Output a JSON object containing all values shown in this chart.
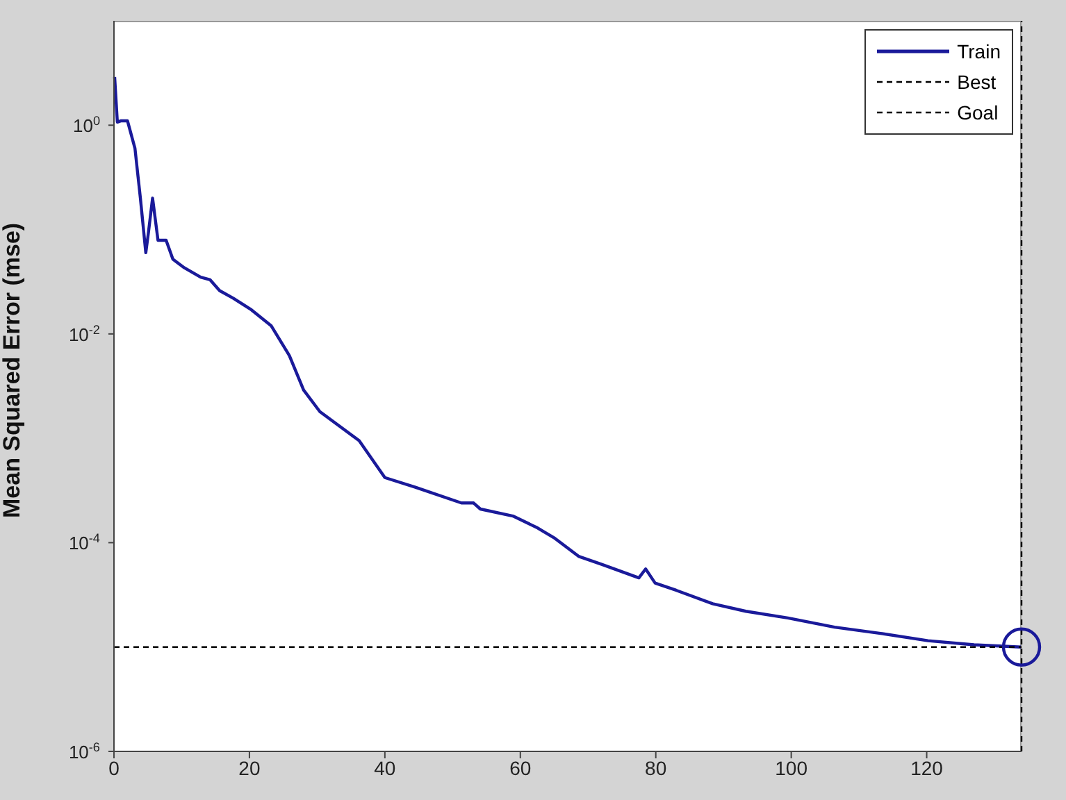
{
  "chart_data": {
    "type": "line",
    "ylabel": "Mean Squared Error  (mse)",
    "log": "y",
    "grid": false,
    "legend": "top right",
    "xlim": [
      0,
      134
    ],
    "xticks": [
      0,
      20,
      40,
      60,
      80,
      100,
      120
    ],
    "ylim": [
      1e-06,
      10
    ],
    "yticks": [
      {
        "value": 1,
        "label": "10$^{0}$"
      },
      {
        "value": 0.01,
        "label": "10$^{-2}$"
      },
      {
        "value": 0.0001,
        "label": "10$^{-4}$"
      },
      {
        "value": 1e-06,
        "label": "10$^{-6}$"
      }
    ],
    "series": [
      {
        "name": "Train",
        "color": "#1a1a9a",
        "line_style": "solid",
        "x": [
          0.1,
          0.5,
          1,
          2,
          3.1,
          3.9,
          4.7,
          5.1,
          5.7,
          6.5,
          7.7,
          8.7,
          10.4,
          12.8,
          14.2,
          15.6,
          17.6,
          20.3,
          23.2,
          25.9,
          28,
          30.4,
          36.2,
          40,
          44.5,
          51.3,
          53.1,
          54.1,
          58.9,
          62.4,
          65.1,
          68.6,
          72,
          77.5,
          78.5,
          79.9,
          83,
          88.4,
          93.3,
          99.5,
          106.4,
          113.2,
          120.2,
          127,
          133.9
        ],
        "values": [
          2.9,
          1.07,
          1.1,
          1.1,
          0.6,
          0.2,
          0.06,
          0.095,
          0.2,
          0.079,
          0.079,
          0.052,
          0.043,
          0.035,
          0.033,
          0.026,
          0.022,
          0.017,
          0.012,
          0.0062,
          0.0029,
          0.0018,
          0.00095,
          0.00042,
          0.00034,
          0.00024,
          0.00024,
          0.00021,
          0.00018,
          0.00014,
          0.00011,
          7.4e-05,
          6.2e-05,
          4.6e-05,
          5.6e-05,
          4.1e-05,
          3.5e-05,
          2.6e-05,
          2.2e-05,
          1.9e-05,
          1.55e-05,
          1.35e-05,
          1.15e-05,
          1.05e-05,
          1e-05
        ]
      },
      {
        "name": "Best",
        "color": "#000000",
        "line_style": "dashed",
        "x": [
          134,
          134
        ],
        "values": [
          1e-06,
          10
        ]
      },
      {
        "name": "Goal",
        "color": "#000000",
        "line_style": "dashed",
        "x": [
          0,
          134
        ],
        "values": [
          1e-05,
          1e-05
        ]
      },
      {
        "type": "scatter",
        "color": "#1a1a9a",
        "marker": "circle",
        "x": [
          134
        ],
        "values": [
          1e-05
        ]
      }
    ]
  }
}
